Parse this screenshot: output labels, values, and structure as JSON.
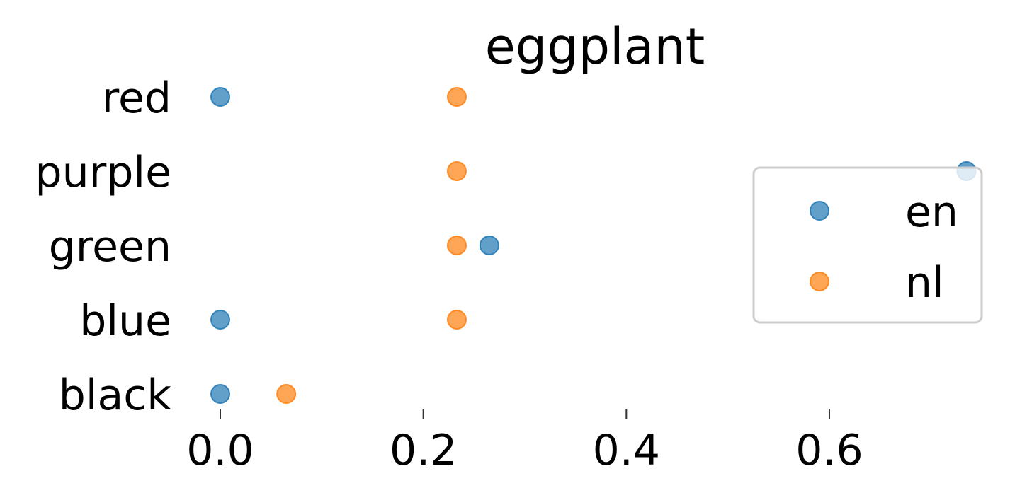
{
  "chart_data": {
    "type": "scatter",
    "title": "eggplant",
    "xlabel": "",
    "ylabel": "",
    "categories": [
      "black",
      "blue",
      "green",
      "purple",
      "red"
    ],
    "x_ticks": [
      "0.0",
      "0.2",
      "0.4",
      "0.6"
    ],
    "x_tick_values": [
      0.0,
      0.2,
      0.4,
      0.6
    ],
    "xlim": [
      -0.05,
      0.75
    ],
    "grid": false,
    "legend_position": "right",
    "series": [
      {
        "name": "en",
        "color": "#1f77b4",
        "values": [
          0.0,
          0.0,
          0.265,
          0.735,
          0.0
        ]
      },
      {
        "name": "nl",
        "color": "#ff7f0e",
        "values": [
          0.065,
          0.233,
          0.233,
          0.233,
          0.233
        ]
      }
    ]
  }
}
